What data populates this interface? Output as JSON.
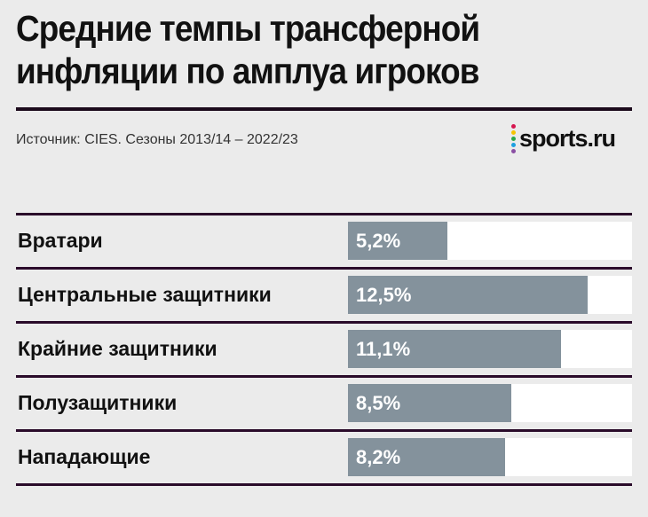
{
  "chart_data": {
    "type": "bar",
    "orientation": "horizontal",
    "title": "Средние темпы трансферной инфляции по амплуа игроков",
    "subtitle": "Источник: CIES. Сезоны 2013/14 – 2022/23",
    "categories": [
      "Вратари",
      "Центральные защитники",
      "Крайние защитники",
      "Полузащитники",
      "Нападающие"
    ],
    "values": [
      5.2,
      12.5,
      11.1,
      8.5,
      8.2
    ],
    "value_labels": [
      "5,2%",
      "12,5%",
      "11,1%",
      "8,5%",
      "8,2%"
    ],
    "xlim": [
      0,
      14.8
    ],
    "grid": false,
    "xlabel": "",
    "ylabel": ""
  },
  "brand": {
    "logo": "sports.ru",
    "dot_colors": [
      "#d6164f",
      "#f5c400",
      "#2aa84a",
      "#1ea0e0",
      "#8a4fa3"
    ]
  },
  "colors": {
    "bar": "#84929c",
    "track": "#ffffff",
    "separator": "#2a0b2a",
    "background": "#ebebeb"
  }
}
